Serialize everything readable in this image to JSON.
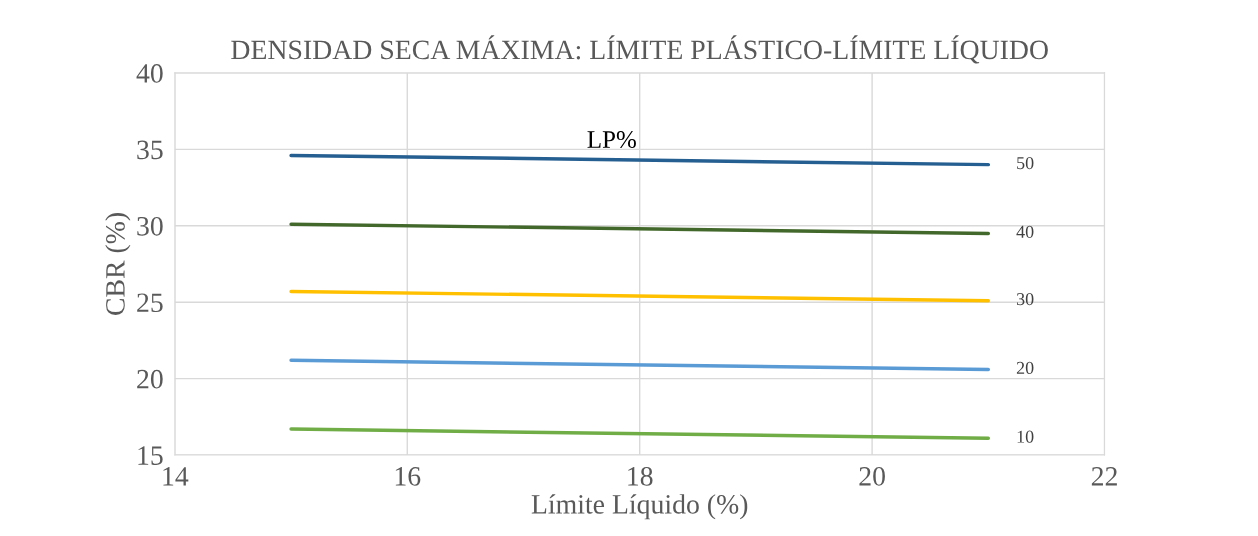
{
  "chart_data": {
    "type": "line",
    "title": "DENSIDAD SECA MÁXIMA: LÍMITE PLÁSTICO-LÍMITE LÍQUIDO",
    "xlabel": "Límite Líquido (%)",
    "ylabel": "CBR (%)",
    "x": [
      15,
      21
    ],
    "series": [
      {
        "name": "50",
        "color": "#255e91",
        "values": [
          34.6,
          34.0
        ]
      },
      {
        "name": "40",
        "color": "#43682b",
        "values": [
          30.1,
          29.5
        ]
      },
      {
        "name": "30",
        "color": "#ffc000",
        "values": [
          25.7,
          25.1
        ]
      },
      {
        "name": "20",
        "color": "#5b9bd5",
        "values": [
          21.2,
          20.6
        ]
      },
      {
        "name": "10",
        "color": "#70ad47",
        "values": [
          16.7,
          16.1
        ]
      }
    ],
    "annotations": [
      "LP%"
    ],
    "xlim": [
      14,
      22
    ],
    "xticks": [
      14,
      16,
      18,
      20,
      22
    ],
    "ylim": [
      15,
      40
    ],
    "yticks": [
      15,
      20,
      25,
      30,
      35,
      40
    ],
    "grid": true,
    "legend": false,
    "marker": "none",
    "line_style": "solid"
  }
}
